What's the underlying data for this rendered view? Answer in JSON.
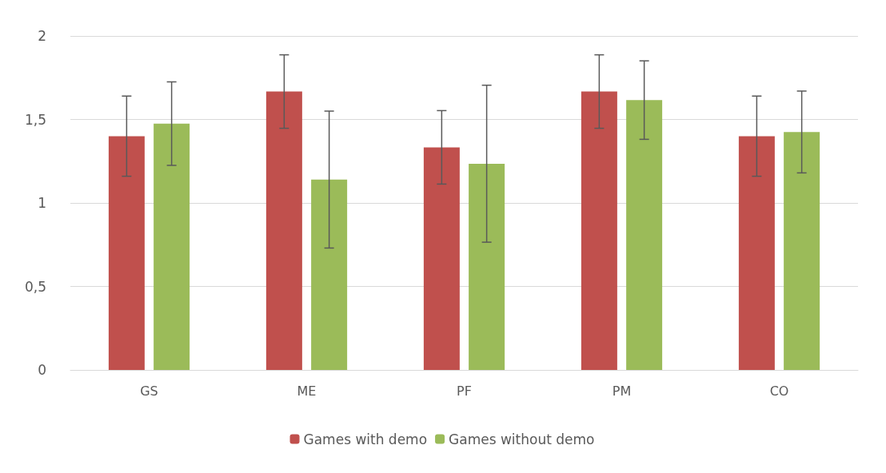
{
  "chart_data": {
    "type": "bar",
    "categories": [
      "GS",
      "ME",
      "PF",
      "PM",
      "CO"
    ],
    "series": [
      {
        "name": "Games with demo",
        "color": "#c0504d",
        "values": [
          1.4,
          1.667,
          1.333,
          1.667,
          1.4
        ],
        "errors": [
          0.24,
          0.22,
          0.22,
          0.22,
          0.24
        ]
      },
      {
        "name": "Games without demo",
        "color": "#9bbb59",
        "values": [
          1.475,
          1.14,
          1.235,
          1.616,
          1.425
        ],
        "errors": [
          0.25,
          0.41,
          0.47,
          0.235,
          0.245
        ]
      }
    ],
    "ylim": [
      0,
      2
    ],
    "yticks": [
      0,
      {
        "value": 0.5,
        "label": "0,5"
      },
      1,
      {
        "value": 1.5,
        "label": "1,5"
      },
      2
    ],
    "grid": "y",
    "legend": "bottom"
  }
}
